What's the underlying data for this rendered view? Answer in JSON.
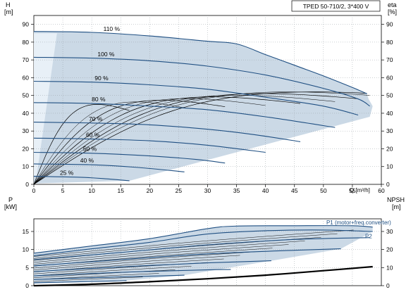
{
  "chart_data": [
    {
      "type": "line",
      "title": "TPED 50-710/2, 3*400 V",
      "ylabel_left": "H",
      "ylabel_left_unit": "[m]",
      "ylabel_right": "eta",
      "ylabel_right_unit": "[%]",
      "xlabel": "Q [m³/h]",
      "xlim": [
        0,
        60
      ],
      "ylim": [
        0,
        95
      ],
      "x_ticks": [
        "0",
        "5",
        "10",
        "15",
        "20",
        "25",
        "30",
        "35",
        "40",
        "45",
        "50",
        "55",
        "60"
      ],
      "y_ticks": [
        "0",
        "10",
        "20",
        "30",
        "40",
        "50",
        "60",
        "70",
        "80",
        "90"
      ],
      "grid": true,
      "series": [
        {
          "name": "110 %",
          "label_x": 12.0,
          "points": [
            [
              0,
              86
            ],
            [
              10,
              85.5
            ],
            [
              20,
              83.5
            ],
            [
              30,
              80.5
            ],
            [
              35,
              79
            ],
            [
              40,
              73
            ],
            [
              45,
              67
            ],
            [
              50,
              61
            ],
            [
              55,
              54.5
            ],
            [
              57.5,
              51
            ]
          ]
        },
        {
          "name": "100 %",
          "label_x": 11.0,
          "points": [
            [
              0,
              71.5
            ],
            [
              10,
              71
            ],
            [
              20,
              69.5
            ],
            [
              30,
              66.5
            ],
            [
              40,
              61.5
            ],
            [
              50,
              54
            ],
            [
              56,
              48
            ],
            [
              58,
              44
            ]
          ]
        },
        {
          "name": "90 %",
          "label_x": 10.5,
          "points": [
            [
              0,
              58
            ],
            [
              10,
              57.5
            ],
            [
              20,
              56
            ],
            [
              30,
              53.5
            ],
            [
              40,
              49
            ],
            [
              50,
              44
            ],
            [
              56,
              39
            ]
          ]
        },
        {
          "name": "80 %",
          "label_x": 10.0,
          "points": [
            [
              0,
              46
            ],
            [
              10,
              45.5
            ],
            [
              20,
              44
            ],
            [
              30,
              42
            ],
            [
              40,
              38
            ],
            [
              52,
              32
            ]
          ]
        },
        {
          "name": "70 %",
          "label_x": 9.5,
          "points": [
            [
              0,
              35
            ],
            [
              10,
              34.5
            ],
            [
              20,
              33.5
            ],
            [
              30,
              31
            ],
            [
              38,
              28
            ],
            [
              46,
              24
            ]
          ]
        },
        {
          "name": "60 %",
          "label_x": 9.0,
          "points": [
            [
              0,
              26
            ],
            [
              10,
              25.5
            ],
            [
              20,
              24.5
            ],
            [
              30,
              22
            ],
            [
              40,
              18
            ]
          ]
        },
        {
          "name": "50 %",
          "label_x": 8.5,
          "points": [
            [
              0,
              18
            ],
            [
              10,
              17.5
            ],
            [
              20,
              16
            ],
            [
              28,
              14
            ],
            [
              33,
              12
            ]
          ]
        },
        {
          "name": "40 %",
          "label_x": 8.0,
          "points": [
            [
              0,
              11.5
            ],
            [
              10,
              11
            ],
            [
              18,
              9.5
            ],
            [
              26,
              7
            ]
          ]
        },
        {
          "name": "25 %",
          "label_x": 4.5,
          "points": [
            [
              0,
              4.5
            ],
            [
              8,
              4
            ],
            [
              13,
              3
            ],
            [
              16.5,
              2
            ]
          ]
        }
      ]
    },
    {
      "type": "line",
      "ylabel_left": "P",
      "ylabel_left_unit": "[kW]",
      "ylabel_right": "NPSH",
      "ylabel_right_unit": "[m]",
      "xlim": [
        0,
        60
      ],
      "ylim": [
        0,
        18.5
      ],
      "y_ticks": [
        "0",
        "5",
        "10",
        "15"
      ],
      "y_ticks_right": [
        "0",
        "10",
        "20",
        "30"
      ],
      "legend": [
        "P1 (motor+freq.converter)",
        "P2"
      ],
      "series": [
        {
          "name": "P1 (motor+freq.converter)",
          "points": [
            [
              0,
              9
            ],
            [
              10,
              11
            ],
            [
              20,
              13
            ],
            [
              30,
              15.8
            ],
            [
              35,
              16.5
            ],
            [
              45,
              16.6
            ],
            [
              55,
              16.6
            ],
            [
              58.5,
              16.2
            ]
          ]
        },
        {
          "name": "P2",
          "points": [
            [
              0,
              8.3
            ],
            [
              10,
              10.2
            ],
            [
              20,
              12
            ],
            [
              30,
              14.3
            ],
            [
              40,
              15.2
            ],
            [
              50,
              15.4
            ],
            [
              58.5,
              15
            ]
          ]
        },
        {
          "name": "",
          "points": [
            [
              0,
              7.2
            ],
            [
              15,
              9.2
            ],
            [
              30,
              11.3
            ],
            [
              45,
              12.8
            ],
            [
              58,
              13.3
            ]
          ]
        },
        {
          "name": "",
          "points": [
            [
              0,
              5.5
            ],
            [
              15,
              7.2
            ],
            [
              30,
              8.8
            ],
            [
              45,
              9.8
            ],
            [
              53,
              10.2
            ]
          ]
        },
        {
          "name": "",
          "points": [
            [
              0,
              3.9
            ],
            [
              15,
              5.2
            ],
            [
              30,
              6.3
            ],
            [
              41,
              6.9
            ]
          ]
        },
        {
          "name": "",
          "points": [
            [
              0,
              2.7
            ],
            [
              15,
              3.7
            ],
            [
              28,
              4.3
            ],
            [
              34,
              4.5
            ]
          ]
        },
        {
          "name": "",
          "points": [
            [
              0,
              1.7
            ],
            [
              12,
              2.3
            ],
            [
              22,
              2.7
            ],
            [
              26,
              2.9
            ]
          ]
        },
        {
          "name": "",
          "points": [
            [
              0,
              0.8
            ],
            [
              8,
              1.1
            ],
            [
              14,
              1.3
            ],
            [
              16,
              1.4
            ]
          ]
        }
      ],
      "npsh_series": [
        [
          0,
          0
        ],
        [
          10,
          0.8
        ],
        [
          20,
          2.2
        ],
        [
          30,
          3.8
        ],
        [
          40,
          5.8
        ],
        [
          50,
          8.3
        ],
        [
          58.5,
          10.5
        ]
      ]
    }
  ]
}
